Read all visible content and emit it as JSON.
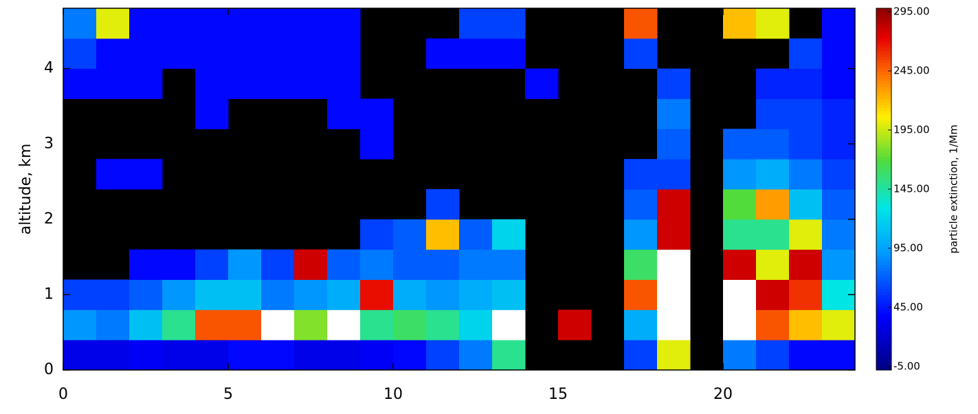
{
  "chart_data": {
    "type": "heatmap",
    "ylabel": "altitude, km",
    "colorbar_label": "particle extinction, 1/Mm",
    "xlim": [
      0,
      24
    ],
    "xticks": [
      0,
      5,
      10,
      15,
      20
    ],
    "ylim": [
      0,
      4.8
    ],
    "yticks": [
      0,
      1,
      2,
      3,
      4
    ],
    "clim": [
      -8,
      298
    ],
    "cticks": [
      {
        "value": -5,
        "label": "-5.00"
      },
      {
        "value": 45,
        "label": "45.00"
      },
      {
        "value": 95,
        "label": "95.00"
      },
      {
        "value": 145,
        "label": "145.00"
      },
      {
        "value": 195,
        "label": "195.00"
      },
      {
        "value": 245,
        "label": "245.00"
      },
      {
        "value": 295,
        "label": "295.00"
      }
    ],
    "missing_color": "#000000",
    "over_color": "#ffffff",
    "values": [
      [
        30,
        30,
        35,
        30,
        30,
        40,
        40,
        30,
        30,
        35,
        40,
        60,
        80,
        150,
        null,
        null,
        null,
        60,
        200,
        null,
        80,
        60,
        40,
        40
      ],
      [
        90,
        80,
        110,
        150,
        250,
        250,
        320,
        180,
        300,
        150,
        160,
        150,
        120,
        300,
        null,
        280,
        null,
        100,
        320,
        null,
        320,
        250,
        220,
        200
      ],
      [
        60,
        60,
        70,
        90,
        110,
        110,
        80,
        90,
        100,
        270,
        100,
        90,
        100,
        110,
        null,
        null,
        null,
        250,
        320,
        null,
        320,
        280,
        260,
        130
      ],
      [
        null,
        null,
        40,
        40,
        60,
        90,
        60,
        280,
        70,
        80,
        70,
        70,
        80,
        80,
        null,
        null,
        null,
        160,
        320,
        null,
        280,
        200,
        280,
        90
      ],
      [
        null,
        null,
        null,
        null,
        null,
        null,
        null,
        null,
        null,
        60,
        70,
        220,
        70,
        120,
        null,
        null,
        null,
        90,
        280,
        null,
        150,
        150,
        200,
        80
      ],
      [
        null,
        null,
        null,
        null,
        null,
        null,
        null,
        null,
        null,
        null,
        null,
        60,
        null,
        null,
        null,
        null,
        null,
        70,
        280,
        null,
        170,
        230,
        110,
        70
      ],
      [
        null,
        40,
        40,
        null,
        null,
        null,
        null,
        null,
        null,
        null,
        null,
        null,
        null,
        null,
        null,
        null,
        null,
        60,
        60,
        null,
        90,
        100,
        80,
        60
      ],
      [
        null,
        null,
        null,
        null,
        null,
        null,
        null,
        null,
        null,
        40,
        null,
        null,
        null,
        null,
        null,
        null,
        null,
        null,
        70,
        null,
        70,
        70,
        60,
        50
      ],
      [
        null,
        null,
        null,
        null,
        40,
        null,
        null,
        null,
        40,
        40,
        null,
        null,
        null,
        null,
        null,
        null,
        null,
        null,
        80,
        null,
        null,
        60,
        60,
        50
      ],
      [
        40,
        40,
        40,
        null,
        40,
        40,
        40,
        40,
        40,
        null,
        null,
        null,
        null,
        null,
        40,
        null,
        null,
        null,
        60,
        null,
        null,
        50,
        50,
        40
      ],
      [
        60,
        40,
        40,
        40,
        40,
        40,
        40,
        40,
        40,
        null,
        null,
        40,
        40,
        40,
        null,
        null,
        null,
        60,
        null,
        null,
        null,
        null,
        60,
        40
      ],
      [
        80,
        200,
        40,
        40,
        40,
        40,
        40,
        40,
        40,
        null,
        null,
        null,
        60,
        60,
        null,
        null,
        null,
        250,
        null,
        null,
        220,
        200,
        null,
        40
      ]
    ]
  }
}
